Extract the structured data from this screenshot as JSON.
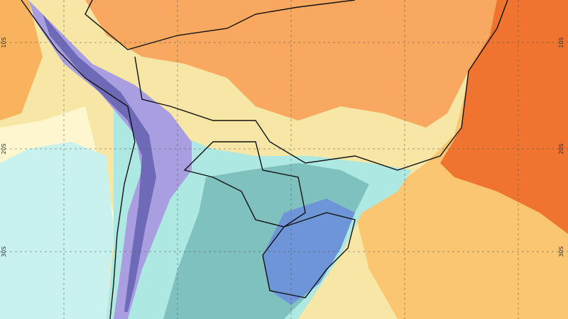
{
  "map": {
    "lat_labels_left": [
      "10S",
      "20S",
      "30S"
    ],
    "lat_labels_right": [
      "10S",
      "20S",
      "30S"
    ]
  }
}
